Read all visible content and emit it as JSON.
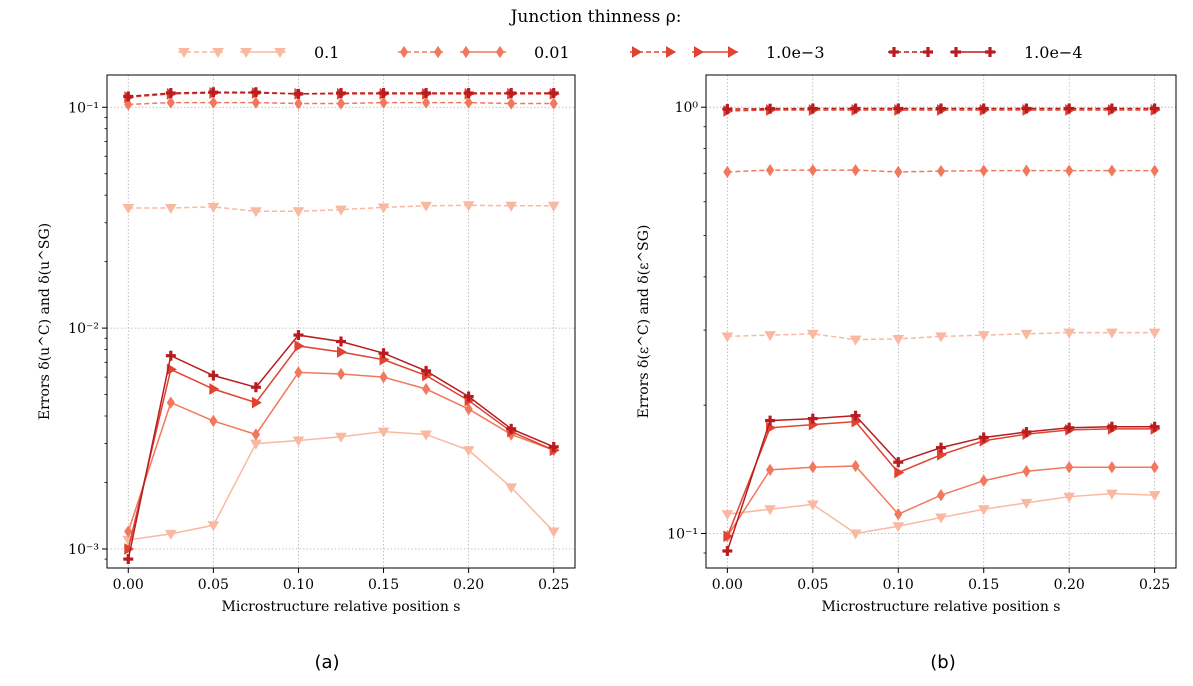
{
  "figure": {
    "legend_title": "Junction thinness ρ:",
    "legend_entries": [
      "0.1",
      "0.01",
      "1.0e−3",
      "1.0e−4"
    ],
    "panel_labels": [
      "(a)",
      "(b)"
    ]
  },
  "series_styles": [
    {
      "label": "0.1",
      "color": "#f9b9a1",
      "marker": "triangle-down"
    },
    {
      "label": "0.01",
      "color": "#f1785d",
      "marker": "diamond"
    },
    {
      "label": "1.0e−3",
      "color": "#e04331",
      "marker": "triangle-right"
    },
    {
      "label": "1.0e−4",
      "color": "#b81c20",
      "marker": "plus"
    }
  ],
  "chart_data": [
    {
      "type": "line",
      "xlabel": "Microstructure relative position s",
      "ylabel": "Errors δ(u^C) and δ(u^SG)",
      "yscale": "log",
      "ylim": [
        0.00082,
        0.14
      ],
      "xlim": [
        -0.0125,
        0.2625
      ],
      "xticks": [
        "0.00",
        "0.05",
        "0.10",
        "0.15",
        "0.20",
        "0.25"
      ],
      "yticks": [
        "10⁻³",
        "10⁻²",
        "10⁻¹"
      ],
      "grid": true,
      "x": [
        0,
        0.025,
        0.05,
        0.075,
        0.1,
        0.125,
        0.15,
        0.175,
        0.2,
        0.225,
        0.25
      ],
      "series": [
        {
          "name": "0.1",
          "kind": "dashed",
          "values": [
            0.035,
            0.035,
            0.0354,
            0.0338,
            0.0338,
            0.0344,
            0.0352,
            0.0358,
            0.036,
            0.0358,
            0.0358
          ]
        },
        {
          "name": "0.01",
          "kind": "dashed",
          "values": [
            0.103,
            0.105,
            0.105,
            0.105,
            0.104,
            0.104,
            0.105,
            0.105,
            0.105,
            0.104,
            0.104
          ]
        },
        {
          "name": "1.0e−3",
          "kind": "dashed",
          "values": [
            0.111,
            0.115,
            0.116,
            0.116,
            0.115,
            0.115,
            0.115,
            0.115,
            0.115,
            0.115,
            0.115
          ]
        },
        {
          "name": "1.0e−4",
          "kind": "dashed",
          "values": [
            0.112,
            0.116,
            0.117,
            0.117,
            0.115,
            0.116,
            0.116,
            0.116,
            0.116,
            0.116,
            0.116
          ]
        },
        {
          "name": "0.1",
          "kind": "solid",
          "values": [
            0.0011,
            0.00117,
            0.00128,
            0.003,
            0.0031,
            0.00322,
            0.0034,
            0.0033,
            0.0028,
            0.0019,
            0.0012
          ]
        },
        {
          "name": "0.01",
          "kind": "solid",
          "values": [
            0.0012,
            0.0046,
            0.0038,
            0.0033,
            0.0063,
            0.0062,
            0.006,
            0.0053,
            0.0043,
            0.0033,
            0.0028
          ]
        },
        {
          "name": "1.0e−3",
          "kind": "solid",
          "values": [
            0.001,
            0.0065,
            0.0053,
            0.0046,
            0.0083,
            0.0078,
            0.0072,
            0.0061,
            0.0047,
            0.0034,
            0.0028
          ]
        },
        {
          "name": "1.0e−4",
          "kind": "solid",
          "values": [
            0.0009,
            0.0075,
            0.0061,
            0.0054,
            0.0093,
            0.0087,
            0.0077,
            0.0064,
            0.0049,
            0.0035,
            0.0029
          ]
        }
      ]
    },
    {
      "type": "line",
      "xlabel": "Microstructure relative position s",
      "ylabel": "Errors δ(ε^C) and δ(ε^SG)",
      "yscale": "log",
      "ylim": [
        0.083,
        1.19
      ],
      "xlim": [
        -0.0125,
        0.2625
      ],
      "xticks": [
        "0.00",
        "0.05",
        "0.10",
        "0.15",
        "0.20",
        "0.25"
      ],
      "yticks": [
        "10⁻¹",
        "10⁰"
      ],
      "grid": true,
      "x": [
        0,
        0.025,
        0.05,
        0.075,
        0.1,
        0.125,
        0.15,
        0.175,
        0.2,
        0.225,
        0.25
      ],
      "series": [
        {
          "name": "0.1",
          "kind": "dashed",
          "values": [
            0.29,
            0.292,
            0.294,
            0.285,
            0.286,
            0.29,
            0.292,
            0.294,
            0.296,
            0.296,
            0.296
          ]
        },
        {
          "name": "0.01",
          "kind": "dashed",
          "values": [
            0.705,
            0.712,
            0.712,
            0.712,
            0.705,
            0.708,
            0.71,
            0.71,
            0.71,
            0.71,
            0.71
          ]
        },
        {
          "name": "1.0e−3",
          "kind": "dashed",
          "values": [
            0.98,
            0.985,
            0.985,
            0.985,
            0.985,
            0.985,
            0.985,
            0.985,
            0.985,
            0.985,
            0.985
          ]
        },
        {
          "name": "1.0e−4",
          "kind": "dashed",
          "values": [
            0.99,
            0.992,
            0.993,
            0.993,
            0.993,
            0.993,
            0.993,
            0.993,
            0.993,
            0.993,
            0.993
          ]
        },
        {
          "name": "0.1",
          "kind": "solid",
          "values": [
            0.111,
            0.114,
            0.117,
            0.1,
            0.104,
            0.109,
            0.114,
            0.118,
            0.122,
            0.124,
            0.123
          ]
        },
        {
          "name": "0.01",
          "kind": "solid",
          "values": [
            0.0985,
            0.141,
            0.143,
            0.144,
            0.111,
            0.123,
            0.133,
            0.14,
            0.143,
            0.143,
            0.143
          ]
        },
        {
          "name": "1.0e−3",
          "kind": "solid",
          "values": [
            0.0985,
            0.177,
            0.18,
            0.183,
            0.139,
            0.153,
            0.165,
            0.171,
            0.175,
            0.176,
            0.176
          ]
        },
        {
          "name": "1.0e−4",
          "kind": "solid",
          "values": [
            0.091,
            0.184,
            0.186,
            0.189,
            0.147,
            0.159,
            0.168,
            0.173,
            0.177,
            0.178,
            0.178
          ]
        }
      ]
    }
  ]
}
